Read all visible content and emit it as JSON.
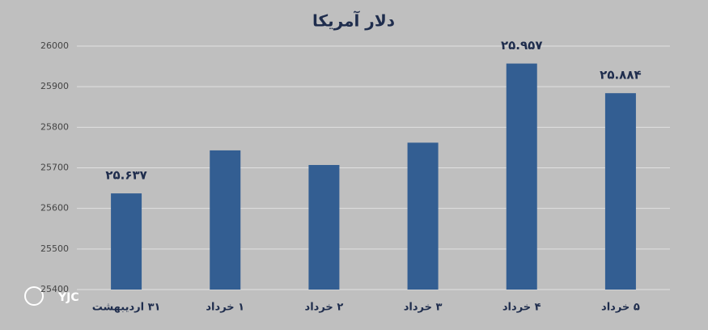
{
  "chart_data": {
    "type": "bar",
    "title": "دلار آمریکا",
    "categories": [
      "۳۱ اردیبهشت",
      "۱ خرداد",
      "۲ خرداد",
      "۳ خرداد",
      "۴ خرداد",
      "۵ خرداد"
    ],
    "values": [
      25637,
      25743,
      25707,
      25762,
      25957,
      25884
    ],
    "value_labels": [
      "۲۵.۶۳۷",
      null,
      null,
      null,
      "۲۵.۹۵۷",
      "۲۵.۸۸۴"
    ],
    "color": "#335e92",
    "ylim": [
      25400,
      26000
    ],
    "yticks": [
      25400,
      25500,
      25600,
      25700,
      25800,
      25900,
      26000
    ],
    "grid": true,
    "watermark": "YJC"
  }
}
